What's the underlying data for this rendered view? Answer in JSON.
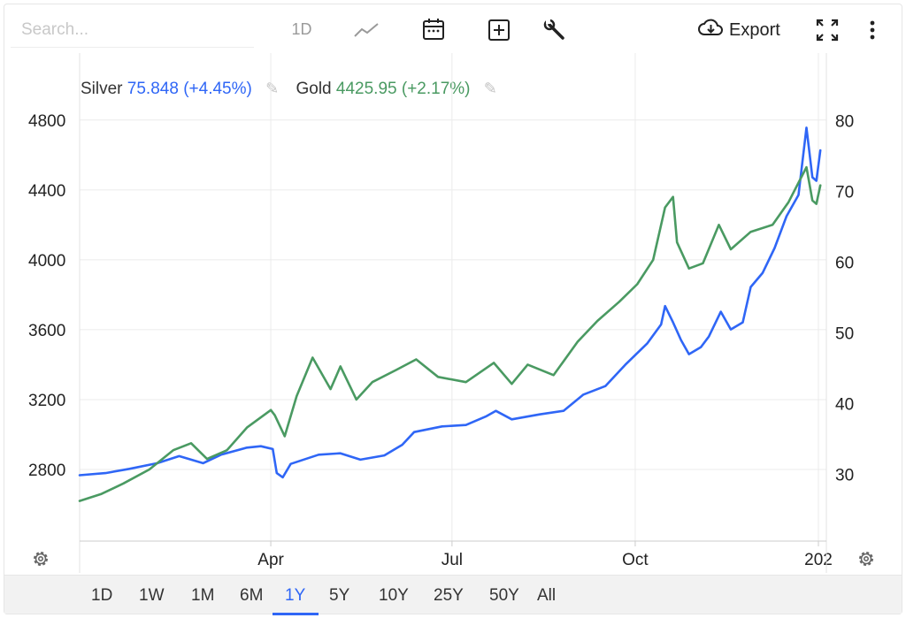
{
  "toolbar": {
    "search_placeholder": "Search...",
    "interval_label": "1D",
    "export_label": "Export",
    "icons": [
      "line-chart-icon",
      "calendar-icon",
      "plus-square-icon",
      "wrench-icon",
      "cloud-download-icon",
      "fullscreen-icon",
      "more-vertical-icon"
    ]
  },
  "legend": {
    "silver": {
      "name": "Silver",
      "value": "75.848",
      "change": "(+4.45%)",
      "color": "#2f66f6"
    },
    "gold": {
      "name": "Gold",
      "value": "4425.95",
      "change": "(+2.17%)",
      "color": "#4a9a62"
    }
  },
  "range_selector": {
    "options": [
      "1D",
      "1W",
      "1M",
      "6M",
      "1Y",
      "5Y",
      "10Y",
      "25Y",
      "50Y",
      "All"
    ],
    "selected": "1Y"
  },
  "colors": {
    "silver": "#2f66f6",
    "gold": "#4a9a62",
    "grid": "#ebebeb",
    "accent": "#2f66f6"
  },
  "chart_data": {
    "type": "line",
    "x_tick_labels": [
      "Apr",
      "Jul",
      "Oct",
      "202"
    ],
    "x_ticks": [
      "2025-04-01",
      "2025-07-01",
      "2025-10-01",
      "2026-01-01"
    ],
    "xlim": [
      "2024-12-26",
      "2026-01-05"
    ],
    "left_axis": {
      "ticks": [
        2800,
        3200,
        3600,
        4000,
        4400,
        4800
      ],
      "range": [
        2390,
        4890
      ]
    },
    "right_axis": {
      "ticks": [
        30,
        40,
        50,
        60,
        70,
        80
      ],
      "range": [
        20.6,
        82.3
      ]
    },
    "grid": true,
    "series": [
      {
        "name": "Silver",
        "axis": "right",
        "color": "#2f66f6",
        "points": [
          [
            "2024-12-26",
            29.9
          ],
          [
            "2025-01-08",
            30.2
          ],
          [
            "2025-01-20",
            30.8
          ],
          [
            "2025-02-03",
            31.6
          ],
          [
            "2025-02-14",
            32.6
          ],
          [
            "2025-02-26",
            31.6
          ],
          [
            "2025-03-07",
            32.8
          ],
          [
            "2025-03-20",
            33.8
          ],
          [
            "2025-03-27",
            34.0
          ],
          [
            "2025-04-02",
            33.6
          ],
          [
            "2025-04-04",
            30.2
          ],
          [
            "2025-04-07",
            29.6
          ],
          [
            "2025-04-11",
            31.5
          ],
          [
            "2025-04-25",
            32.8
          ],
          [
            "2025-05-06",
            33.0
          ],
          [
            "2025-05-16",
            32.1
          ],
          [
            "2025-05-28",
            32.7
          ],
          [
            "2025-06-06",
            34.2
          ],
          [
            "2025-06-12",
            36.0
          ],
          [
            "2025-06-26",
            36.8
          ],
          [
            "2025-07-08",
            37.0
          ],
          [
            "2025-07-18",
            38.2
          ],
          [
            "2025-07-23",
            39.0
          ],
          [
            "2025-07-31",
            37.8
          ],
          [
            "2025-08-14",
            38.5
          ],
          [
            "2025-08-26",
            39.0
          ],
          [
            "2025-09-05",
            41.3
          ],
          [
            "2025-09-16",
            42.5
          ],
          [
            "2025-09-26",
            45.5
          ],
          [
            "2025-10-07",
            48.5
          ],
          [
            "2025-10-14",
            51.2
          ],
          [
            "2025-10-16",
            53.8
          ],
          [
            "2025-10-20",
            51.5
          ],
          [
            "2025-10-24",
            49.0
          ],
          [
            "2025-10-28",
            47.0
          ],
          [
            "2025-11-03",
            48.0
          ],
          [
            "2025-11-07",
            49.5
          ],
          [
            "2025-11-13",
            53.0
          ],
          [
            "2025-11-18",
            50.5
          ],
          [
            "2025-11-24",
            51.5
          ],
          [
            "2025-11-28",
            56.5
          ],
          [
            "2025-12-04",
            58.5
          ],
          [
            "2025-12-10",
            62.0
          ],
          [
            "2025-12-16",
            66.5
          ],
          [
            "2025-12-22",
            69.5
          ],
          [
            "2025-12-26",
            79.0
          ],
          [
            "2025-12-29",
            72.0
          ],
          [
            "2025-12-31",
            71.5
          ],
          [
            "2026-01-02",
            75.8
          ]
        ]
      },
      {
        "name": "Gold",
        "axis": "left",
        "color": "#4a9a62",
        "points": [
          [
            "2024-12-26",
            2620
          ],
          [
            "2025-01-06",
            2660
          ],
          [
            "2025-01-17",
            2720
          ],
          [
            "2025-01-30",
            2800
          ],
          [
            "2025-02-11",
            2910
          ],
          [
            "2025-02-20",
            2950
          ],
          [
            "2025-02-28",
            2860
          ],
          [
            "2025-03-10",
            2910
          ],
          [
            "2025-03-20",
            3040
          ],
          [
            "2025-04-01",
            3140
          ],
          [
            "2025-04-03",
            3110
          ],
          [
            "2025-04-08",
            2990
          ],
          [
            "2025-04-14",
            3220
          ],
          [
            "2025-04-22",
            3440
          ],
          [
            "2025-05-01",
            3260
          ],
          [
            "2025-05-06",
            3390
          ],
          [
            "2025-05-14",
            3200
          ],
          [
            "2025-05-22",
            3300
          ],
          [
            "2025-06-03",
            3370
          ],
          [
            "2025-06-13",
            3430
          ],
          [
            "2025-06-24",
            3330
          ],
          [
            "2025-07-08",
            3300
          ],
          [
            "2025-07-22",
            3410
          ],
          [
            "2025-07-31",
            3290
          ],
          [
            "2025-08-08",
            3400
          ],
          [
            "2025-08-21",
            3340
          ],
          [
            "2025-09-02",
            3530
          ],
          [
            "2025-09-12",
            3650
          ],
          [
            "2025-09-23",
            3760
          ],
          [
            "2025-10-02",
            3860
          ],
          [
            "2025-10-10",
            4000
          ],
          [
            "2025-10-16",
            4300
          ],
          [
            "2025-10-20",
            4360
          ],
          [
            "2025-10-22",
            4100
          ],
          [
            "2025-10-28",
            3950
          ],
          [
            "2025-11-04",
            3980
          ],
          [
            "2025-11-12",
            4200
          ],
          [
            "2025-11-18",
            4060
          ],
          [
            "2025-11-28",
            4160
          ],
          [
            "2025-12-09",
            4200
          ],
          [
            "2025-12-17",
            4330
          ],
          [
            "2025-12-26",
            4530
          ],
          [
            "2025-12-29",
            4340
          ],
          [
            "2025-12-31",
            4320
          ],
          [
            "2026-01-02",
            4426
          ]
        ]
      }
    ]
  }
}
